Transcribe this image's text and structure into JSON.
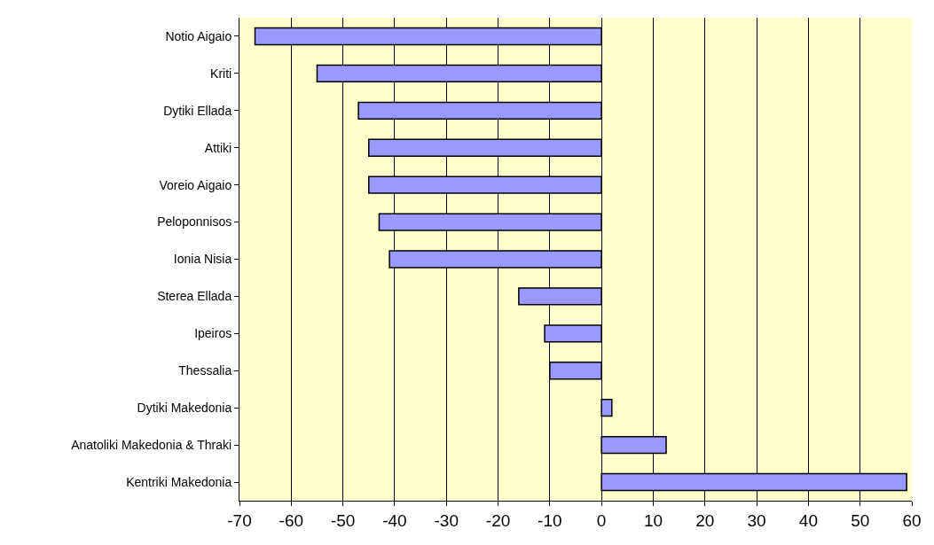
{
  "chart_data": {
    "type": "bar",
    "orientation": "horizontal",
    "categories": [
      "Notio Aigaio",
      "Kriti",
      "Dytiki Ellada",
      "Attiki",
      "Voreio Aigaio",
      "Peloponnisos",
      "Ionia Nisia",
      "Sterea Ellada",
      "Ipeiros",
      "Thessalia",
      "Dytiki Makedonia",
      "Anatoliki Makedonia & Thraki",
      "Kentriki Makedonia"
    ],
    "values": [
      -67,
      -55,
      -47,
      -45,
      -45,
      -43,
      -41,
      -16,
      -11,
      -10,
      2,
      12.5,
      59
    ],
    "color": "#9999ff",
    "xlim": [
      -70,
      60
    ],
    "xticks": [
      -70,
      -60,
      -50,
      -40,
      -30,
      -20,
      -10,
      0,
      10,
      20,
      30,
      40,
      50,
      60
    ],
    "grid": "x"
  }
}
